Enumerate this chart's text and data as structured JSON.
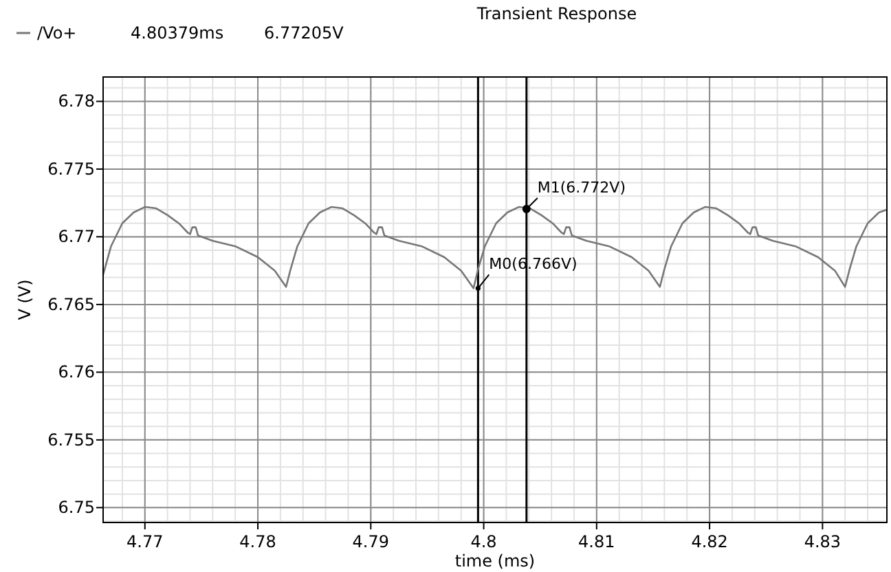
{
  "chart_data": {
    "type": "line",
    "title": "Transient Response",
    "xlabel": "time (ms)",
    "ylabel": "V (V)",
    "xlim": [
      4.7663,
      4.8357
    ],
    "ylim": [
      6.7489,
      6.7818
    ],
    "xticks": [
      4.77,
      4.78,
      4.79,
      4.8,
      4.81,
      4.82,
      4.83
    ],
    "yticks": [
      6.75,
      6.755,
      6.76,
      6.765,
      6.77,
      6.775,
      6.78
    ],
    "grid": true,
    "legend": "top left",
    "marker": "none",
    "line_style": "solid",
    "series": [
      {
        "name": "/Vo+",
        "color": "#777777",
        "x": [
          4.7663,
          4.767,
          4.768,
          4.769,
          4.77,
          4.771,
          4.772,
          4.773,
          4.7738,
          4.774,
          4.7742,
          4.7745,
          4.7747,
          4.776,
          4.778,
          4.78,
          4.7815,
          4.7825,
          4.7829,
          4.7835,
          4.7845,
          4.7855,
          4.7865,
          4.7875,
          4.7885,
          4.7895,
          4.7903,
          4.7905,
          4.7907,
          4.791,
          4.7912,
          4.7925,
          4.7945,
          4.7965,
          4.798,
          4.7991,
          4.7995,
          4.8001,
          4.8011,
          4.8021,
          4.8031,
          4.8041,
          4.8051,
          4.8061,
          4.8069,
          4.8071,
          4.8073,
          4.8076,
          4.8078,
          4.8091,
          4.8111,
          4.8131,
          4.8146,
          4.8156,
          4.816,
          4.8166,
          4.8176,
          4.8186,
          4.8196,
          4.8206,
          4.8216,
          4.8226,
          4.8234,
          4.8236,
          4.8238,
          4.8241,
          4.8243,
          4.8256,
          4.8276,
          4.8296,
          4.8311,
          4.832,
          4.8324,
          4.833,
          4.834,
          4.835,
          4.8357
        ],
        "values": [
          6.7672,
          6.7693,
          6.771,
          6.7718,
          6.7722,
          6.7721,
          6.7716,
          6.771,
          6.7703,
          6.7702,
          6.7707,
          6.7707,
          6.7701,
          6.7697,
          6.7693,
          6.7685,
          6.7675,
          6.7663,
          6.7676,
          6.7693,
          6.771,
          6.7718,
          6.7722,
          6.7721,
          6.7716,
          6.771,
          6.7703,
          6.7702,
          6.7707,
          6.7707,
          6.7701,
          6.7697,
          6.7693,
          6.7685,
          6.7675,
          6.7662,
          6.7676,
          6.7693,
          6.771,
          6.7718,
          6.7722,
          6.7721,
          6.7716,
          6.771,
          6.7703,
          6.7702,
          6.7707,
          6.7707,
          6.7701,
          6.7697,
          6.7693,
          6.7685,
          6.7675,
          6.7663,
          6.7676,
          6.7693,
          6.771,
          6.7718,
          6.7722,
          6.7721,
          6.7716,
          6.771,
          6.7703,
          6.7702,
          6.7707,
          6.7707,
          6.7701,
          6.7697,
          6.7693,
          6.7685,
          6.7675,
          6.7663,
          6.7676,
          6.7693,
          6.771,
          6.7718,
          6.772
        ]
      }
    ],
    "ref_lines": [
      {
        "axis": "x",
        "value": 4.7995,
        "color": "#000000"
      },
      {
        "axis": "x",
        "value": 4.80379,
        "color": "#000000"
      }
    ],
    "annotations": [
      "4.80379ms",
      "6.77205V",
      {
        "text": "M1(6.772V)",
        "x": 4.80379,
        "y": 6.77205
      },
      {
        "text": "M0(6.766V)",
        "x": 4.7995,
        "y": 6.7662
      }
    ]
  }
}
